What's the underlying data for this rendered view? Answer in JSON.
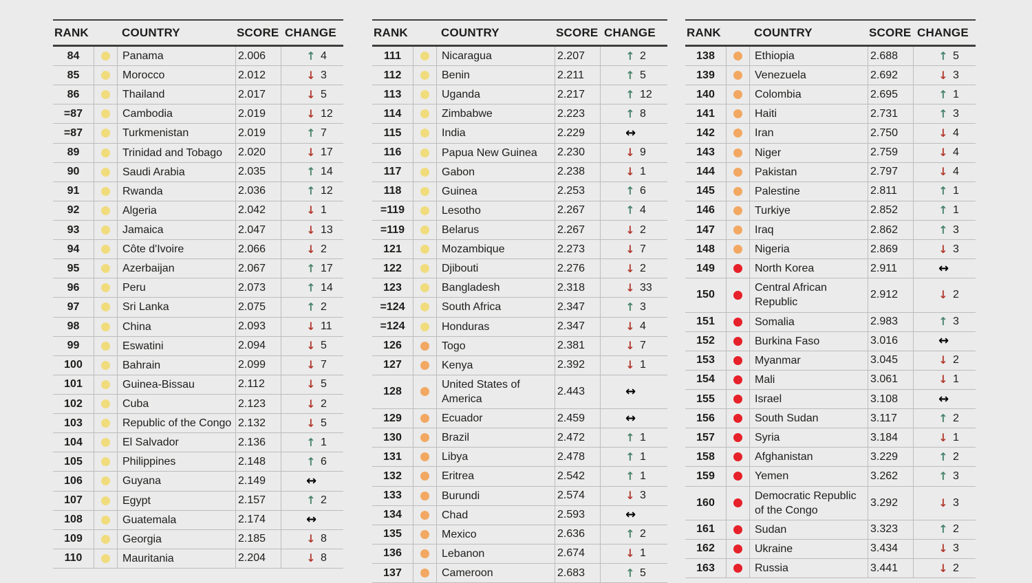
{
  "colors": {
    "background": "#ebebeb",
    "text": "#1d1d1b",
    "up_arrow": "#47836b",
    "down_arrow": "#b23a2e",
    "neutral_arrow": "#000000",
    "dots": {
      "yellow": "#f1dc7d",
      "orange": "#f2a862",
      "red": "#e6212a"
    },
    "rule_light": "#bcbcbc",
    "rule_dark": "#3e3e3d"
  },
  "glyphs": {
    "up": "↑",
    "down": "↓",
    "neutral": "↔"
  },
  "chart_data": {
    "type": "table",
    "columns": [
      "RANK",
      "COUNTRY",
      "SCORE",
      "CHANGE"
    ],
    "tables": [
      [
        {
          "rank": "84",
          "dot": "yellow",
          "country": "Panama",
          "score": "2.006",
          "dir": "up",
          "change": "4"
        },
        {
          "rank": "85",
          "dot": "yellow",
          "country": "Morocco",
          "score": "2.012",
          "dir": "down",
          "change": "3"
        },
        {
          "rank": "86",
          "dot": "yellow",
          "country": "Thailand",
          "score": "2.017",
          "dir": "down",
          "change": "5"
        },
        {
          "rank": "=87",
          "dot": "yellow",
          "country": "Cambodia",
          "score": "2.019",
          "dir": "down",
          "change": "12"
        },
        {
          "rank": "=87",
          "dot": "yellow",
          "country": "Turkmenistan",
          "score": "2.019",
          "dir": "up",
          "change": "7"
        },
        {
          "rank": "89",
          "dot": "yellow",
          "country": "Trinidad and Tobago",
          "score": "2.020",
          "dir": "down",
          "change": "17"
        },
        {
          "rank": "90",
          "dot": "yellow",
          "country": "Saudi Arabia",
          "score": "2.035",
          "dir": "up",
          "change": "14"
        },
        {
          "rank": "91",
          "dot": "yellow",
          "country": "Rwanda",
          "score": "2.036",
          "dir": "up",
          "change": "12"
        },
        {
          "rank": "92",
          "dot": "yellow",
          "country": "Algeria",
          "score": "2.042",
          "dir": "down",
          "change": "1"
        },
        {
          "rank": "93",
          "dot": "yellow",
          "country": "Jamaica",
          "score": "2.047",
          "dir": "down",
          "change": "13"
        },
        {
          "rank": "94",
          "dot": "yellow",
          "country": "Côte d'Ivoire",
          "score": "2.066",
          "dir": "down",
          "change": "2"
        },
        {
          "rank": "95",
          "dot": "yellow",
          "country": "Azerbaijan",
          "score": "2.067",
          "dir": "up",
          "change": "17"
        },
        {
          "rank": "96",
          "dot": "yellow",
          "country": "Peru",
          "score": "2.073",
          "dir": "up",
          "change": "14"
        },
        {
          "rank": "97",
          "dot": "yellow",
          "country": "Sri Lanka",
          "score": "2.075",
          "dir": "up",
          "change": "2"
        },
        {
          "rank": "98",
          "dot": "yellow",
          "country": "China",
          "score": "2.093",
          "dir": "down",
          "change": "11"
        },
        {
          "rank": "99",
          "dot": "yellow",
          "country": "Eswatini",
          "score": "2.094",
          "dir": "down",
          "change": "5"
        },
        {
          "rank": "100",
          "dot": "yellow",
          "country": "Bahrain",
          "score": "2.099",
          "dir": "down",
          "change": "7"
        },
        {
          "rank": "101",
          "dot": "yellow",
          "country": "Guinea-Bissau",
          "score": "2.112",
          "dir": "down",
          "change": "5"
        },
        {
          "rank": "102",
          "dot": "yellow",
          "country": "Cuba",
          "score": "2.123",
          "dir": "down",
          "change": "2"
        },
        {
          "rank": "103",
          "dot": "yellow",
          "country": "Republic of the Congo",
          "score": "2.132",
          "dir": "down",
          "change": "5"
        },
        {
          "rank": "104",
          "dot": "yellow",
          "country": "El Salvador",
          "score": "2.136",
          "dir": "up",
          "change": "1"
        },
        {
          "rank": "105",
          "dot": "yellow",
          "country": "Philippines",
          "score": "2.148",
          "dir": "up",
          "change": "6"
        },
        {
          "rank": "106",
          "dot": "yellow",
          "country": "Guyana",
          "score": "2.149",
          "dir": "none",
          "change": ""
        },
        {
          "rank": "107",
          "dot": "yellow",
          "country": "Egypt",
          "score": "2.157",
          "dir": "up",
          "change": "2"
        },
        {
          "rank": "108",
          "dot": "yellow",
          "country": "Guatemala",
          "score": "2.174",
          "dir": "none",
          "change": ""
        },
        {
          "rank": "109",
          "dot": "yellow",
          "country": "Georgia",
          "score": "2.185",
          "dir": "down",
          "change": "8"
        },
        {
          "rank": "110",
          "dot": "yellow",
          "country": "Mauritania",
          "score": "2.204",
          "dir": "down",
          "change": "8"
        }
      ],
      [
        {
          "rank": "111",
          "dot": "yellow",
          "country": "Nicaragua",
          "score": "2.207",
          "dir": "up",
          "change": "2"
        },
        {
          "rank": "112",
          "dot": "yellow",
          "country": "Benin",
          "score": "2.211",
          "dir": "up",
          "change": "5"
        },
        {
          "rank": "113",
          "dot": "yellow",
          "country": "Uganda",
          "score": "2.217",
          "dir": "up",
          "change": "12"
        },
        {
          "rank": "114",
          "dot": "yellow",
          "country": "Zimbabwe",
          "score": "2.223",
          "dir": "up",
          "change": "8"
        },
        {
          "rank": "115",
          "dot": "yellow",
          "country": "India",
          "score": "2.229",
          "dir": "none",
          "change": ""
        },
        {
          "rank": "116",
          "dot": "yellow",
          "country": "Papua New Guinea",
          "score": "2.230",
          "dir": "down",
          "change": "9"
        },
        {
          "rank": "117",
          "dot": "yellow",
          "country": "Gabon",
          "score": "2.238",
          "dir": "down",
          "change": "1"
        },
        {
          "rank": "118",
          "dot": "yellow",
          "country": "Guinea",
          "score": "2.253",
          "dir": "up",
          "change": "6"
        },
        {
          "rank": "=119",
          "dot": "yellow",
          "country": "Lesotho",
          "score": "2.267",
          "dir": "up",
          "change": "4"
        },
        {
          "rank": "=119",
          "dot": "yellow",
          "country": "Belarus",
          "score": "2.267",
          "dir": "down",
          "change": "2"
        },
        {
          "rank": "121",
          "dot": "yellow",
          "country": "Mozambique",
          "score": "2.273",
          "dir": "down",
          "change": "7"
        },
        {
          "rank": "122",
          "dot": "yellow",
          "country": "Djibouti",
          "score": "2.276",
          "dir": "down",
          "change": "2"
        },
        {
          "rank": "123",
          "dot": "yellow",
          "country": "Bangladesh",
          "score": "2.318",
          "dir": "down",
          "change": "33"
        },
        {
          "rank": "=124",
          "dot": "yellow",
          "country": "South Africa",
          "score": "2.347",
          "dir": "up",
          "change": "3"
        },
        {
          "rank": "=124",
          "dot": "yellow",
          "country": "Honduras",
          "score": "2.347",
          "dir": "down",
          "change": "4"
        },
        {
          "rank": "126",
          "dot": "orange",
          "country": "Togo",
          "score": "2.381",
          "dir": "down",
          "change": "7"
        },
        {
          "rank": "127",
          "dot": "orange",
          "country": "Kenya",
          "score": "2.392",
          "dir": "down",
          "change": "1"
        },
        {
          "rank": "128",
          "dot": "orange",
          "country": "United States of America",
          "score": "2.443",
          "dir": "none",
          "change": ""
        },
        {
          "rank": "129",
          "dot": "orange",
          "country": "Ecuador",
          "score": "2.459",
          "dir": "none",
          "change": ""
        },
        {
          "rank": "130",
          "dot": "orange",
          "country": "Brazil",
          "score": "2.472",
          "dir": "up",
          "change": "1"
        },
        {
          "rank": "131",
          "dot": "orange",
          "country": "Libya",
          "score": "2.478",
          "dir": "up",
          "change": "1"
        },
        {
          "rank": "132",
          "dot": "orange",
          "country": "Eritrea",
          "score": "2.542",
          "dir": "up",
          "change": "1"
        },
        {
          "rank": "133",
          "dot": "orange",
          "country": "Burundi",
          "score": "2.574",
          "dir": "down",
          "change": "3"
        },
        {
          "rank": "134",
          "dot": "orange",
          "country": "Chad",
          "score": "2.593",
          "dir": "none",
          "change": ""
        },
        {
          "rank": "135",
          "dot": "orange",
          "country": "Mexico",
          "score": "2.636",
          "dir": "up",
          "change": "2"
        },
        {
          "rank": "136",
          "dot": "orange",
          "country": "Lebanon",
          "score": "2.674",
          "dir": "down",
          "change": "1"
        },
        {
          "rank": "137",
          "dot": "orange",
          "country": "Cameroon",
          "score": "2.683",
          "dir": "up",
          "change": "5"
        }
      ],
      [
        {
          "rank": "138",
          "dot": "orange",
          "country": "Ethiopia",
          "score": "2.688",
          "dir": "up",
          "change": "5"
        },
        {
          "rank": "139",
          "dot": "orange",
          "country": "Venezuela",
          "score": "2.692",
          "dir": "down",
          "change": "3"
        },
        {
          "rank": "140",
          "dot": "orange",
          "country": "Colombia",
          "score": "2.695",
          "dir": "up",
          "change": "1"
        },
        {
          "rank": "141",
          "dot": "orange",
          "country": "Haiti",
          "score": "2.731",
          "dir": "up",
          "change": "3"
        },
        {
          "rank": "142",
          "dot": "orange",
          "country": "Iran",
          "score": "2.750",
          "dir": "down",
          "change": "4"
        },
        {
          "rank": "143",
          "dot": "orange",
          "country": "Niger",
          "score": "2.759",
          "dir": "down",
          "change": "4"
        },
        {
          "rank": "144",
          "dot": "orange",
          "country": "Pakistan",
          "score": "2.797",
          "dir": "down",
          "change": "4"
        },
        {
          "rank": "145",
          "dot": "orange",
          "country": "Palestine",
          "score": "2.811",
          "dir": "up",
          "change": "1"
        },
        {
          "rank": "146",
          "dot": "orange",
          "country": "Turkiye",
          "score": "2.852",
          "dir": "up",
          "change": "1"
        },
        {
          "rank": "147",
          "dot": "orange",
          "country": "Iraq",
          "score": "2.862",
          "dir": "up",
          "change": "3"
        },
        {
          "rank": "148",
          "dot": "orange",
          "country": "Nigeria",
          "score": "2.869",
          "dir": "down",
          "change": "3"
        },
        {
          "rank": "149",
          "dot": "red",
          "country": "North Korea",
          "score": "2.911",
          "dir": "none",
          "change": ""
        },
        {
          "rank": "150",
          "dot": "red",
          "country": "Central African Republic",
          "score": "2.912",
          "dir": "down",
          "change": "2"
        },
        {
          "rank": "151",
          "dot": "red",
          "country": "Somalia",
          "score": "2.983",
          "dir": "up",
          "change": "3"
        },
        {
          "rank": "152",
          "dot": "red",
          "country": "Burkina Faso",
          "score": "3.016",
          "dir": "none",
          "change": ""
        },
        {
          "rank": "153",
          "dot": "red",
          "country": "Myanmar",
          "score": "3.045",
          "dir": "down",
          "change": "2"
        },
        {
          "rank": "154",
          "dot": "red",
          "country": "Mali",
          "score": "3.061",
          "dir": "down",
          "change": "1"
        },
        {
          "rank": "155",
          "dot": "red",
          "country": "Israel",
          "score": "3.108",
          "dir": "none",
          "change": ""
        },
        {
          "rank": "156",
          "dot": "red",
          "country": "South Sudan",
          "score": "3.117",
          "dir": "up",
          "change": "2"
        },
        {
          "rank": "157",
          "dot": "red",
          "country": "Syria",
          "score": "3.184",
          "dir": "down",
          "change": "1"
        },
        {
          "rank": "158",
          "dot": "red",
          "country": "Afghanistan",
          "score": "3.229",
          "dir": "up",
          "change": "2"
        },
        {
          "rank": "159",
          "dot": "red",
          "country": "Yemen",
          "score": "3.262",
          "dir": "up",
          "change": "3"
        },
        {
          "rank": "160",
          "dot": "red",
          "country": "Democratic Republic of the Congo",
          "score": "3.292",
          "dir": "down",
          "change": "3"
        },
        {
          "rank": "161",
          "dot": "red",
          "country": "Sudan",
          "score": "3.323",
          "dir": "up",
          "change": "2"
        },
        {
          "rank": "162",
          "dot": "red",
          "country": "Ukraine",
          "score": "3.434",
          "dir": "down",
          "change": "3"
        },
        {
          "rank": "163",
          "dot": "red",
          "country": "Russia",
          "score": "3.441",
          "dir": "down",
          "change": "2"
        }
      ]
    ]
  }
}
